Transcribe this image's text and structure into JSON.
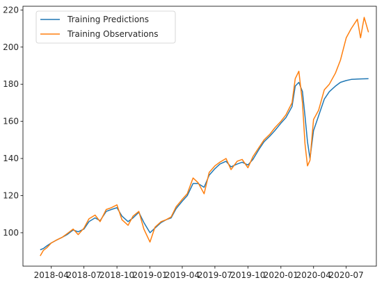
{
  "chart_data": {
    "type": "line",
    "title": "",
    "xlabel": "",
    "ylabel": "",
    "xlim": [
      "2018-01-12",
      "2020-09-23"
    ],
    "ylim": [
      82,
      222
    ],
    "x_ticks": [
      "2018-04",
      "2018-07",
      "2018-10",
      "2019-01",
      "2019-04",
      "2019-07",
      "2019-10",
      "2020-01",
      "2020-04",
      "2020-07"
    ],
    "y_ticks": [
      100,
      120,
      140,
      160,
      180,
      200,
      220
    ],
    "grid": false,
    "legend": "upper-left",
    "series": [
      {
        "name": "Training Predictions",
        "color": "#1f77b4",
        "points": [
          [
            "2018-03-01",
            90.8
          ],
          [
            "2018-03-10",
            91.5
          ],
          [
            "2018-03-20",
            93.0
          ],
          [
            "2018-04-01",
            94.5
          ],
          [
            "2018-04-15",
            96.0
          ],
          [
            "2018-05-01",
            97.5
          ],
          [
            "2018-05-15",
            99.0
          ],
          [
            "2018-06-01",
            101.5
          ],
          [
            "2018-06-15",
            100.5
          ],
          [
            "2018-07-01",
            102.0
          ],
          [
            "2018-07-15",
            106.0
          ],
          [
            "2018-08-01",
            108.0
          ],
          [
            "2018-08-15",
            106.5
          ],
          [
            "2018-09-01",
            111.5
          ],
          [
            "2018-09-15",
            112.5
          ],
          [
            "2018-10-01",
            113.5
          ],
          [
            "2018-10-15",
            109.0
          ],
          [
            "2018-11-01",
            106.0
          ],
          [
            "2018-11-15",
            108.0
          ],
          [
            "2018-12-01",
            111.0
          ],
          [
            "2018-12-15",
            105.5
          ],
          [
            "2019-01-01",
            100.0
          ],
          [
            "2019-01-15",
            102.5
          ],
          [
            "2019-02-01",
            105.5
          ],
          [
            "2019-02-15",
            107.0
          ],
          [
            "2019-03-01",
            108.0
          ],
          [
            "2019-03-15",
            113.0
          ],
          [
            "2019-04-01",
            117.0
          ],
          [
            "2019-04-15",
            120.0
          ],
          [
            "2019-05-01",
            126.5
          ],
          [
            "2019-05-15",
            126.5
          ],
          [
            "2019-06-01",
            124.5
          ],
          [
            "2019-06-15",
            131.0
          ],
          [
            "2019-07-01",
            134.5
          ],
          [
            "2019-07-15",
            137.0
          ],
          [
            "2019-08-01",
            138.5
          ],
          [
            "2019-08-15",
            135.5
          ],
          [
            "2019-09-01",
            137.0
          ],
          [
            "2019-09-15",
            138.0
          ],
          [
            "2019-10-01",
            136.5
          ],
          [
            "2019-10-15",
            139.5
          ],
          [
            "2019-11-01",
            145.0
          ],
          [
            "2019-11-15",
            149.0
          ],
          [
            "2019-12-01",
            152.0
          ],
          [
            "2019-12-15",
            155.0
          ],
          [
            "2020-01-01",
            159.0
          ],
          [
            "2020-01-15",
            162.0
          ],
          [
            "2020-02-01",
            168.0
          ],
          [
            "2020-02-10",
            179.0
          ],
          [
            "2020-02-20",
            181.0
          ],
          [
            "2020-03-01",
            176.0
          ],
          [
            "2020-03-08",
            163.0
          ],
          [
            "2020-03-15",
            149.0
          ],
          [
            "2020-03-22",
            140.0
          ],
          [
            "2020-04-01",
            155.0
          ],
          [
            "2020-04-15",
            163.0
          ],
          [
            "2020-05-01",
            172.0
          ],
          [
            "2020-05-15",
            176.0
          ],
          [
            "2020-06-01",
            179.0
          ],
          [
            "2020-06-15",
            181.0
          ],
          [
            "2020-07-01",
            182.0
          ],
          [
            "2020-07-15",
            182.6
          ],
          [
            "2020-08-01",
            182.8
          ],
          [
            "2020-08-15",
            182.9
          ],
          [
            "2020-09-01",
            183.0
          ]
        ]
      },
      {
        "name": "Training Observations",
        "color": "#ff7f0e",
        "points": [
          [
            "2018-03-01",
            87.5
          ],
          [
            "2018-03-10",
            90.5
          ],
          [
            "2018-03-20",
            92.0
          ],
          [
            "2018-04-01",
            94.5
          ],
          [
            "2018-04-15",
            96.0
          ],
          [
            "2018-05-01",
            97.5
          ],
          [
            "2018-05-15",
            99.5
          ],
          [
            "2018-06-01",
            102.0
          ],
          [
            "2018-06-15",
            99.0
          ],
          [
            "2018-07-01",
            102.5
          ],
          [
            "2018-07-15",
            107.5
          ],
          [
            "2018-08-01",
            109.5
          ],
          [
            "2018-08-15",
            106.0
          ],
          [
            "2018-09-01",
            112.5
          ],
          [
            "2018-09-15",
            113.5
          ],
          [
            "2018-10-01",
            115.0
          ],
          [
            "2018-10-15",
            107.0
          ],
          [
            "2018-11-01",
            104.0
          ],
          [
            "2018-11-15",
            109.0
          ],
          [
            "2018-12-01",
            111.5
          ],
          [
            "2018-12-15",
            102.0
          ],
          [
            "2019-01-01",
            95.0
          ],
          [
            "2019-01-15",
            103.0
          ],
          [
            "2019-02-01",
            106.0
          ],
          [
            "2019-02-15",
            107.0
          ],
          [
            "2019-03-01",
            108.5
          ],
          [
            "2019-03-15",
            114.0
          ],
          [
            "2019-04-01",
            118.0
          ],
          [
            "2019-04-15",
            121.0
          ],
          [
            "2019-05-01",
            129.5
          ],
          [
            "2019-05-15",
            127.0
          ],
          [
            "2019-06-01",
            121.0
          ],
          [
            "2019-06-15",
            132.5
          ],
          [
            "2019-07-01",
            136.0
          ],
          [
            "2019-07-15",
            138.0
          ],
          [
            "2019-08-01",
            140.0
          ],
          [
            "2019-08-15",
            134.0
          ],
          [
            "2019-09-01",
            138.5
          ],
          [
            "2019-09-15",
            139.5
          ],
          [
            "2019-10-01",
            135.0
          ],
          [
            "2019-10-15",
            141.0
          ],
          [
            "2019-11-01",
            146.0
          ],
          [
            "2019-11-15",
            150.0
          ],
          [
            "2019-12-01",
            153.0
          ],
          [
            "2019-12-15",
            156.5
          ],
          [
            "2020-01-01",
            160.0
          ],
          [
            "2020-01-15",
            163.5
          ],
          [
            "2020-02-01",
            170.0
          ],
          [
            "2020-02-10",
            183.0
          ],
          [
            "2020-02-20",
            187.0
          ],
          [
            "2020-03-01",
            170.0
          ],
          [
            "2020-03-08",
            148.0
          ],
          [
            "2020-03-15",
            136.0
          ],
          [
            "2020-03-22",
            139.0
          ],
          [
            "2020-04-01",
            161.0
          ],
          [
            "2020-04-15",
            166.0
          ],
          [
            "2020-05-01",
            177.0
          ],
          [
            "2020-05-15",
            180.0
          ],
          [
            "2020-06-01",
            186.0
          ],
          [
            "2020-06-15",
            193.0
          ],
          [
            "2020-07-01",
            205.0
          ],
          [
            "2020-07-15",
            210.0
          ],
          [
            "2020-08-01",
            215.0
          ],
          [
            "2020-08-10",
            205.0
          ],
          [
            "2020-08-20",
            216.0
          ],
          [
            "2020-09-01",
            208.0
          ]
        ]
      }
    ]
  }
}
